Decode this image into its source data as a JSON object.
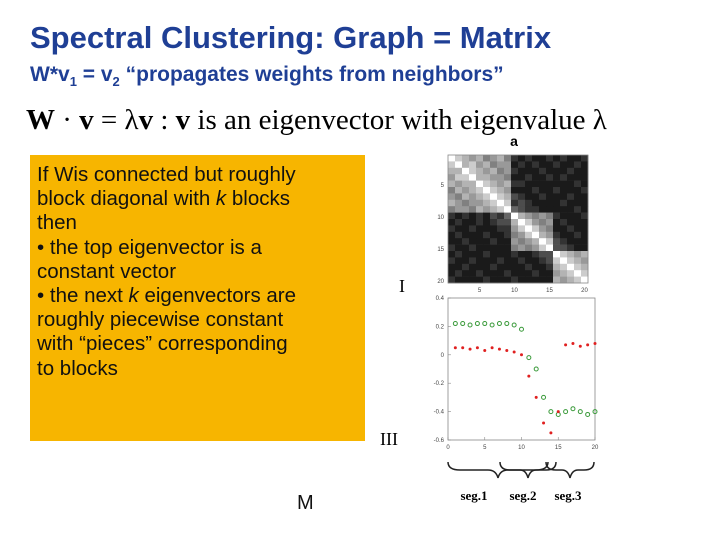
{
  "title": "Spectral Clustering: Graph = Matrix",
  "subtitle": [
    "W*v",
    "1",
    " = v",
    "2",
    " “propagates weights from neighbors”"
  ],
  "equation": [
    "W",
    " · ",
    "v",
    " = λ",
    "v",
    " : ",
    "v",
    " is an eigenvector with eigenvalue λ"
  ],
  "callout": [
    [
      "If Wis connected but roughly"
    ],
    [
      "block diagonal with ",
      "k",
      " blocks"
    ],
    [
      "then"
    ],
    [
      "• the top eigenvector is a"
    ],
    [
      "constant vector"
    ],
    [
      "• the next ",
      "k",
      " eigenvectors are"
    ],
    [
      "roughly piecewise constant"
    ],
    [
      "with “pieces” corresponding"
    ],
    [
      "to blocks"
    ]
  ],
  "figure": {
    "panel_label": "a",
    "label_top": "I",
    "label_bottom": "III",
    "segments": [
      "seg.1",
      "seg.2",
      "seg.3"
    ],
    "heatmap": {
      "xticks": [
        5,
        10,
        15,
        20
      ],
      "yticks": [
        5,
        10,
        15,
        20
      ],
      "values": [
        [
          1,
          0.8,
          0.7,
          0.6,
          0.7,
          0.5,
          0.6,
          0.7,
          0.5,
          0.2,
          0.1,
          0.2,
          0.1,
          0.1,
          0.2,
          0.1,
          0.2,
          0.1,
          0.1,
          0.2
        ],
        [
          0.8,
          1,
          0.7,
          0.8,
          0.6,
          0.7,
          0.5,
          0.6,
          0.6,
          0.1,
          0.2,
          0.1,
          0.2,
          0.1,
          0.1,
          0.2,
          0.1,
          0.1,
          0.2,
          0.1
        ],
        [
          0.7,
          0.7,
          1,
          0.8,
          0.7,
          0.6,
          0.7,
          0.5,
          0.6,
          0.2,
          0.1,
          0.1,
          0.1,
          0.2,
          0.1,
          0.1,
          0.1,
          0.2,
          0.1,
          0.1
        ],
        [
          0.6,
          0.8,
          0.8,
          1,
          0.7,
          0.7,
          0.6,
          0.6,
          0.5,
          0.1,
          0.1,
          0.2,
          0.1,
          0.1,
          0.2,
          0.1,
          0.2,
          0.1,
          0.1,
          0.1
        ],
        [
          0.7,
          0.6,
          0.7,
          0.7,
          1,
          0.8,
          0.7,
          0.6,
          0.7,
          0.2,
          0.2,
          0.1,
          0.1,
          0.1,
          0.1,
          0.1,
          0.1,
          0.1,
          0.2,
          0.1
        ],
        [
          0.5,
          0.7,
          0.6,
          0.7,
          0.8,
          1,
          0.8,
          0.7,
          0.6,
          0.1,
          0.1,
          0.1,
          0.2,
          0.1,
          0.1,
          0.2,
          0.1,
          0.1,
          0.1,
          0.2
        ],
        [
          0.6,
          0.5,
          0.7,
          0.6,
          0.7,
          0.8,
          1,
          0.8,
          0.7,
          0.3,
          0.2,
          0.1,
          0.1,
          0.2,
          0.1,
          0.1,
          0.1,
          0.2,
          0.1,
          0.1
        ],
        [
          0.7,
          0.6,
          0.5,
          0.6,
          0.6,
          0.7,
          0.8,
          1,
          0.8,
          0.2,
          0.3,
          0.2,
          0.1,
          0.1,
          0.1,
          0.1,
          0.2,
          0.1,
          0.1,
          0.1
        ],
        [
          0.5,
          0.6,
          0.6,
          0.5,
          0.7,
          0.6,
          0.7,
          0.8,
          1,
          0.4,
          0.3,
          0.2,
          0.2,
          0.1,
          0.1,
          0.1,
          0.1,
          0.1,
          0.2,
          0.1
        ],
        [
          0.2,
          0.1,
          0.2,
          0.1,
          0.2,
          0.1,
          0.3,
          0.2,
          0.4,
          1,
          0.7,
          0.6,
          0.5,
          0.6,
          0.5,
          0.2,
          0.1,
          0.1,
          0.1,
          0.2
        ],
        [
          0.1,
          0.2,
          0.1,
          0.1,
          0.2,
          0.1,
          0.2,
          0.3,
          0.3,
          0.7,
          1,
          0.8,
          0.6,
          0.5,
          0.6,
          0.1,
          0.2,
          0.1,
          0.1,
          0.1
        ],
        [
          0.2,
          0.1,
          0.1,
          0.2,
          0.1,
          0.1,
          0.1,
          0.2,
          0.2,
          0.6,
          0.8,
          1,
          0.8,
          0.6,
          0.5,
          0.1,
          0.1,
          0.2,
          0.1,
          0.1
        ],
        [
          0.1,
          0.2,
          0.1,
          0.1,
          0.1,
          0.2,
          0.1,
          0.1,
          0.2,
          0.5,
          0.6,
          0.8,
          1,
          0.7,
          0.6,
          0.2,
          0.1,
          0.1,
          0.2,
          0.1
        ],
        [
          0.1,
          0.1,
          0.2,
          0.1,
          0.1,
          0.1,
          0.2,
          0.1,
          0.1,
          0.6,
          0.5,
          0.6,
          0.7,
          1,
          0.8,
          0.3,
          0.2,
          0.1,
          0.1,
          0.1
        ],
        [
          0.2,
          0.1,
          0.1,
          0.2,
          0.1,
          0.1,
          0.1,
          0.1,
          0.1,
          0.5,
          0.6,
          0.5,
          0.6,
          0.8,
          1,
          0.3,
          0.3,
          0.2,
          0.1,
          0.1
        ],
        [
          0.1,
          0.2,
          0.1,
          0.1,
          0.1,
          0.2,
          0.1,
          0.1,
          0.1,
          0.2,
          0.1,
          0.1,
          0.2,
          0.3,
          0.3,
          1,
          0.8,
          0.7,
          0.6,
          0.7
        ],
        [
          0.2,
          0.1,
          0.1,
          0.2,
          0.1,
          0.1,
          0.1,
          0.2,
          0.1,
          0.1,
          0.2,
          0.1,
          0.1,
          0.2,
          0.3,
          0.8,
          1,
          0.8,
          0.7,
          0.6
        ],
        [
          0.1,
          0.1,
          0.2,
          0.1,
          0.1,
          0.1,
          0.2,
          0.1,
          0.1,
          0.1,
          0.1,
          0.2,
          0.1,
          0.1,
          0.2,
          0.7,
          0.8,
          1,
          0.8,
          0.7
        ],
        [
          0.1,
          0.2,
          0.1,
          0.1,
          0.2,
          0.1,
          0.1,
          0.1,
          0.2,
          0.1,
          0.1,
          0.1,
          0.2,
          0.1,
          0.1,
          0.6,
          0.7,
          0.8,
          1,
          0.8
        ],
        [
          0.2,
          0.1,
          0.1,
          0.1,
          0.1,
          0.2,
          0.1,
          0.1,
          0.1,
          0.2,
          0.1,
          0.1,
          0.1,
          0.1,
          0.1,
          0.7,
          0.6,
          0.7,
          0.8,
          1
        ]
      ]
    }
  },
  "chart_data": {
    "type": "scatter",
    "x": [
      1,
      2,
      3,
      4,
      5,
      6,
      7,
      8,
      9,
      10,
      11,
      12,
      13,
      14,
      15,
      16,
      17,
      18,
      19,
      20
    ],
    "series": [
      {
        "color": "#3a9a3a",
        "values": [
          0.22,
          0.22,
          0.21,
          0.22,
          0.22,
          0.21,
          0.22,
          0.22,
          0.21,
          0.18,
          -0.02,
          -0.1,
          -0.3,
          -0.4,
          -0.42,
          -0.4,
          -0.38,
          -0.4,
          -0.42,
          -0.4
        ]
      },
      {
        "color": "#e02020",
        "values": [
          0.05,
          0.05,
          0.04,
          0.05,
          0.03,
          0.05,
          0.04,
          0.03,
          0.02,
          0.0,
          -0.15,
          -0.3,
          -0.48,
          -0.55,
          -0.4,
          0.07,
          0.08,
          0.06,
          0.07,
          0.08
        ]
      }
    ],
    "xlim": [
      0,
      20
    ],
    "xticks": [
      0,
      5,
      10,
      15,
      20
    ],
    "ylim": [
      -0.6,
      0.4
    ],
    "yticks": [
      0.4,
      0.2,
      0,
      -0.2,
      -0.4,
      -0.6
    ]
  },
  "footer": "M"
}
